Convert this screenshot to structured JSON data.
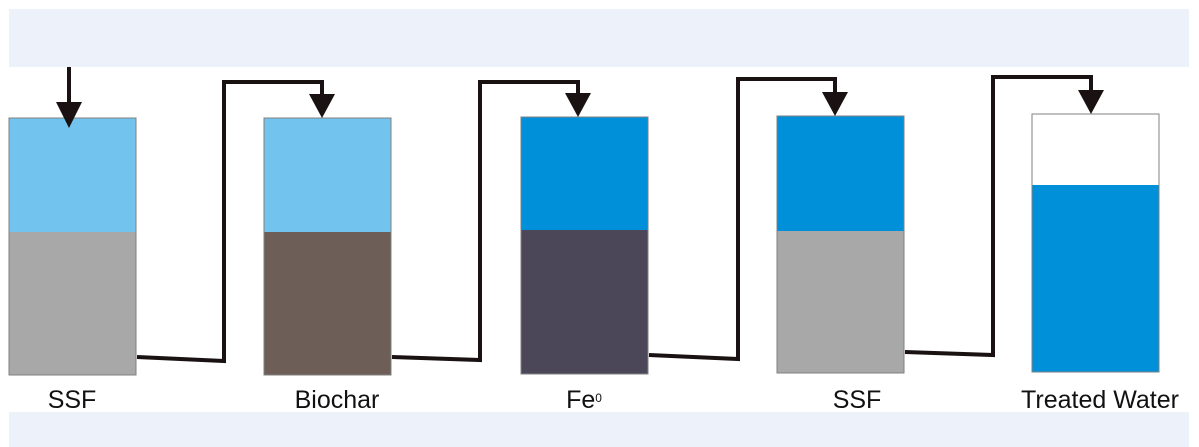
{
  "colors": {
    "background_band": "#edf2fa",
    "light_water": "#72c4ee",
    "dark_water": "#0090da",
    "ssf_media": "#a8a8a8",
    "biochar_media": "#6d5f57",
    "iron_media": "#4b4759",
    "pipe": "#1a1212"
  },
  "columns": [
    {
      "label": "SSF",
      "water_color": "light_water",
      "media_color": "ssf_media"
    },
    {
      "label": "Biochar",
      "water_color": "light_water",
      "media_color": "biochar_media"
    },
    {
      "label": "Fe",
      "label_sup": "0",
      "water_color": "dark_water",
      "media_color": "iron_media"
    },
    {
      "label": "SSF",
      "water_color": "dark_water",
      "media_color": "ssf_media"
    },
    {
      "label": "Treated Water",
      "water_color": "dark_water",
      "media_color": null
    }
  ]
}
